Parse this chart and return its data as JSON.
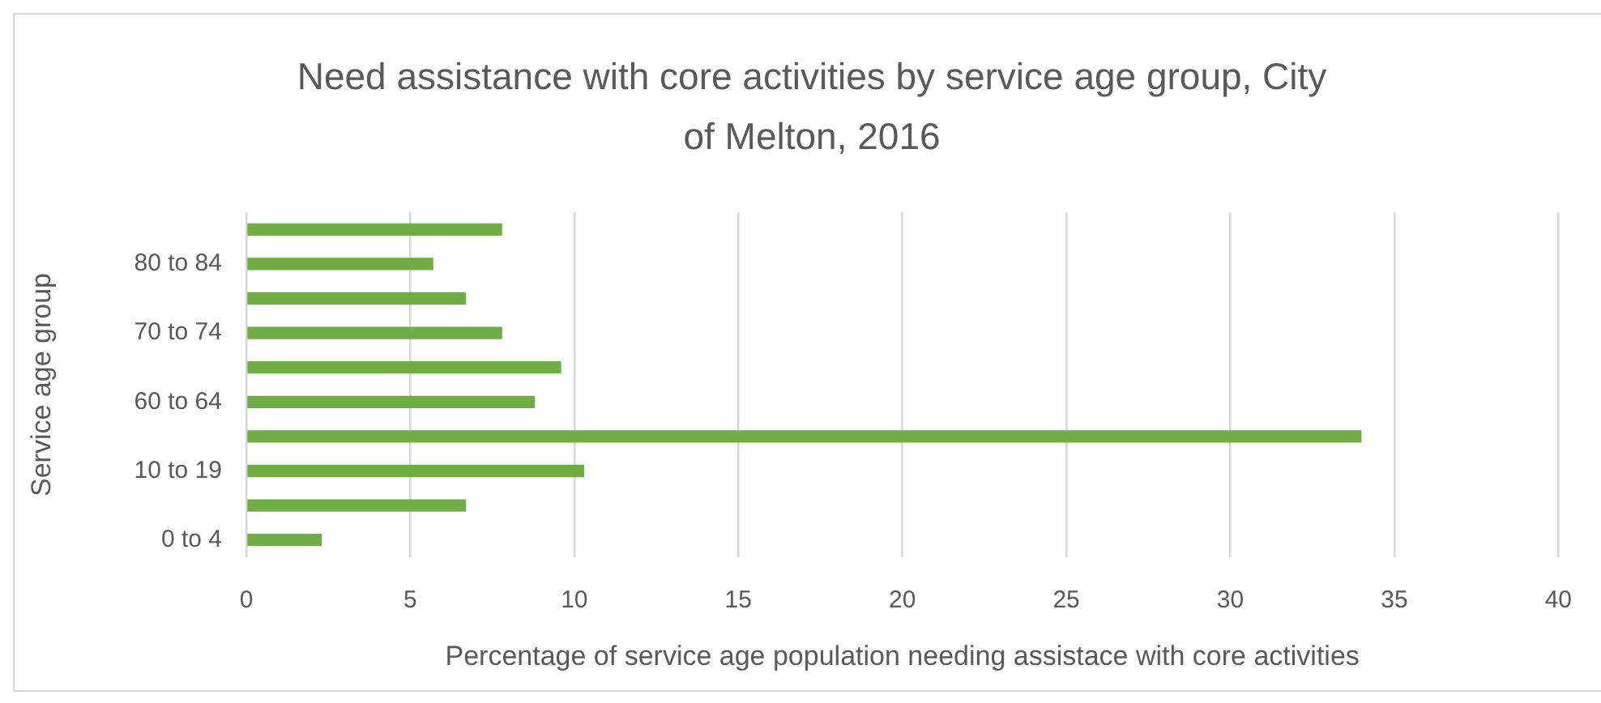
{
  "chart_data": {
    "type": "bar",
    "orientation": "horizontal",
    "title": "Need assistance with core activities by service age group, City of Melton, 2016",
    "xlabel": "Percentage of service age population needing assistace with core activities",
    "ylabel": "Service age group",
    "categories": [
      null,
      "80 to 84",
      null,
      "70 to 74",
      null,
      "60 to 64",
      null,
      "10 to 19",
      null,
      "0 to 4"
    ],
    "values": [
      7.8,
      5.7,
      6.7,
      7.8,
      9.6,
      8.8,
      34,
      10.3,
      6.7,
      2.3
    ],
    "color": "#70ad47",
    "xlim": [
      0,
      40
    ],
    "xticks": [
      0,
      5,
      10,
      15,
      20,
      25,
      30,
      35,
      40
    ],
    "grid": "x"
  }
}
